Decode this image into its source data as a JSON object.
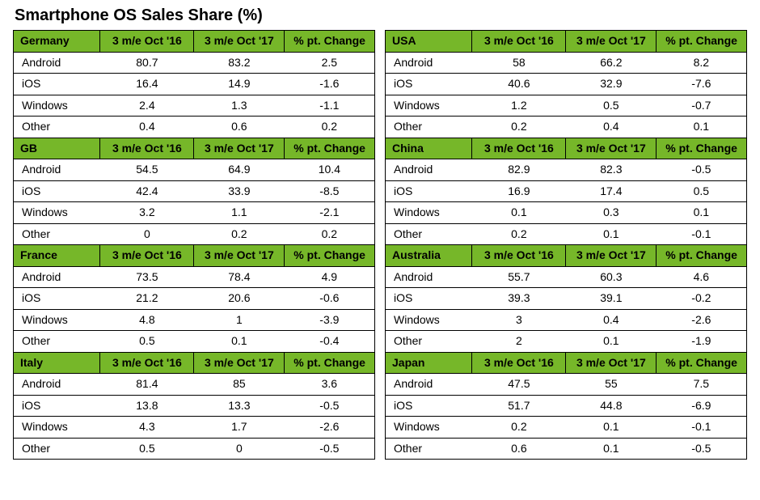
{
  "title": "Smartphone OS Sales Share (%)",
  "colors": {
    "header_bg": "#76b729",
    "header_text": "#000000",
    "border": "#000000",
    "background": "#ffffff",
    "text": "#000000"
  },
  "typography": {
    "title_fontsize_pt": 15,
    "title_weight": "bold",
    "header_fontsize_pt": 10.5,
    "header_weight": "bold",
    "cell_fontsize_pt": 10.5,
    "font_family": "Arial"
  },
  "layout": {
    "type": "table",
    "columns_per_country": 4,
    "arrangement": "two-columns-four-countries-each",
    "col_widths_pct": [
      24,
      26,
      25,
      25
    ]
  },
  "column_headers": {
    "col_period1": "3 m/e Oct '16",
    "col_period2": "3 m/e Oct '17",
    "col_change": "% pt. Change"
  },
  "os_labels": [
    "Android",
    "iOS",
    "Windows",
    "Other"
  ],
  "left_countries": [
    {
      "country": "Germany",
      "rows": [
        {
          "os": "Android",
          "p1": "80.7",
          "p2": "83.2",
          "chg": "2.5"
        },
        {
          "os": "iOS",
          "p1": "16.4",
          "p2": "14.9",
          "chg": "-1.6"
        },
        {
          "os": "Windows",
          "p1": "2.4",
          "p2": "1.3",
          "chg": "-1.1"
        },
        {
          "os": "Other",
          "p1": "0.4",
          "p2": "0.6",
          "chg": "0.2"
        }
      ]
    },
    {
      "country": "GB",
      "rows": [
        {
          "os": "Android",
          "p1": "54.5",
          "p2": "64.9",
          "chg": "10.4"
        },
        {
          "os": "iOS",
          "p1": "42.4",
          "p2": "33.9",
          "chg": "-8.5"
        },
        {
          "os": "Windows",
          "p1": "3.2",
          "p2": "1.1",
          "chg": "-2.1"
        },
        {
          "os": "Other",
          "p1": "0",
          "p2": "0.2",
          "chg": "0.2"
        }
      ]
    },
    {
      "country": "France",
      "rows": [
        {
          "os": "Android",
          "p1": "73.5",
          "p2": "78.4",
          "chg": "4.9"
        },
        {
          "os": "iOS",
          "p1": "21.2",
          "p2": "20.6",
          "chg": "-0.6"
        },
        {
          "os": "Windows",
          "p1": "4.8",
          "p2": "1",
          "chg": "-3.9"
        },
        {
          "os": "Other",
          "p1": "0.5",
          "p2": "0.1",
          "chg": "-0.4"
        }
      ]
    },
    {
      "country": "Italy",
      "rows": [
        {
          "os": "Android",
          "p1": "81.4",
          "p2": "85",
          "chg": "3.6"
        },
        {
          "os": "iOS",
          "p1": "13.8",
          "p2": "13.3",
          "chg": "-0.5"
        },
        {
          "os": "Windows",
          "p1": "4.3",
          "p2": "1.7",
          "chg": "-2.6"
        },
        {
          "os": "Other",
          "p1": "0.5",
          "p2": "0",
          "chg": "-0.5"
        }
      ]
    }
  ],
  "right_countries": [
    {
      "country": "USA",
      "rows": [
        {
          "os": "Android",
          "p1": "58",
          "p2": "66.2",
          "chg": "8.2"
        },
        {
          "os": "iOS",
          "p1": "40.6",
          "p2": "32.9",
          "chg": "-7.6"
        },
        {
          "os": "Windows",
          "p1": "1.2",
          "p2": "0.5",
          "chg": "-0.7"
        },
        {
          "os": "Other",
          "p1": "0.2",
          "p2": "0.4",
          "chg": "0.1"
        }
      ]
    },
    {
      "country": "China",
      "rows": [
        {
          "os": "Android",
          "p1": "82.9",
          "p2": "82.3",
          "chg": "-0.5"
        },
        {
          "os": "iOS",
          "p1": "16.9",
          "p2": "17.4",
          "chg": "0.5"
        },
        {
          "os": "Windows",
          "p1": "0.1",
          "p2": "0.3",
          "chg": "0.1"
        },
        {
          "os": "Other",
          "p1": "0.2",
          "p2": "0.1",
          "chg": "-0.1"
        }
      ]
    },
    {
      "country": "Australia",
      "rows": [
        {
          "os": "Android",
          "p1": "55.7",
          "p2": "60.3",
          "chg": "4.6"
        },
        {
          "os": "iOS",
          "p1": "39.3",
          "p2": "39.1",
          "chg": "-0.2"
        },
        {
          "os": "Windows",
          "p1": "3",
          "p2": "0.4",
          "chg": "-2.6"
        },
        {
          "os": "Other",
          "p1": "2",
          "p2": "0.1",
          "chg": "-1.9"
        }
      ]
    },
    {
      "country": "Japan",
      "rows": [
        {
          "os": "Android",
          "p1": "47.5",
          "p2": "55",
          "chg": "7.5"
        },
        {
          "os": "iOS",
          "p1": "51.7",
          "p2": "44.8",
          "chg": "-6.9"
        },
        {
          "os": "Windows",
          "p1": "0.2",
          "p2": "0.1",
          "chg": "-0.1"
        },
        {
          "os": "Other",
          "p1": "0.6",
          "p2": "0.1",
          "chg": "-0.5"
        }
      ]
    }
  ]
}
